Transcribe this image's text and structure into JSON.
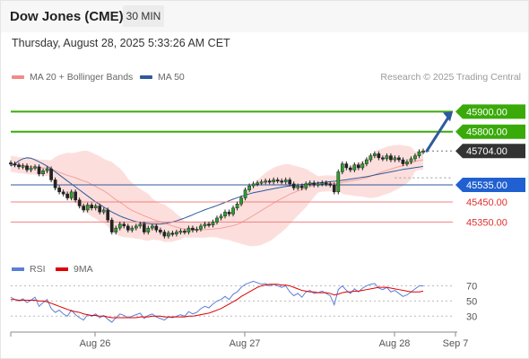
{
  "header": {
    "title": "Dow Jones (CME)",
    "timeframe": "30 MIN"
  },
  "datetime": "Thursday, August 28, 2025 5:33:26 AM CET",
  "credit": "Research © 2025 Trading Central",
  "legend": {
    "bollinger": "MA 20 + Bollinger Bands",
    "ma50": "MA 50",
    "rsi": "RSI",
    "rsi_ma": "9MA"
  },
  "colors": {
    "bollinger": "#f08080",
    "ma50": "#2e5a9c",
    "target": "#3aaa0a",
    "support": "#f08080",
    "pivot": "#2e5a9c",
    "rsi": "#5b7fd6",
    "rsi_ma": "#e00000",
    "last": "#333333"
  },
  "chart_data": [
    {
      "type": "candlestick",
      "series": "Dow Jones (CME)",
      "x_ticks": [
        "Aug 26",
        "Aug 27",
        "Aug 28",
        "Sep 7"
      ],
      "ylim": [
        45240,
        46000
      ],
      "last_price": 45704,
      "levels": [
        {
          "value": 45900,
          "label": "45900.00",
          "kind": "target"
        },
        {
          "value": 45800,
          "label": "45800.00",
          "kind": "target"
        },
        {
          "value": 45704,
          "label": "45704.00",
          "kind": "last"
        },
        {
          "value": 45535,
          "label": "45535.00",
          "kind": "pivot"
        },
        {
          "value": 45450,
          "label": "45450.00",
          "kind": "support"
        },
        {
          "value": 45350,
          "label": "45350.00",
          "kind": "support"
        }
      ],
      "arrow": {
        "from": 45704,
        "to": 45900,
        "direction": "up"
      },
      "closes": [
        45640,
        45635,
        45625,
        45630,
        45610,
        45620,
        45625,
        45590,
        45605,
        45615,
        45560,
        45520,
        45500,
        45490,
        45470,
        45500,
        45460,
        45430,
        45410,
        45435,
        45420,
        45430,
        45400,
        45410,
        45360,
        45300,
        45320,
        45340,
        45330,
        45310,
        45320,
        45330,
        45340,
        45300,
        45320,
        45330,
        45310,
        45300,
        45280,
        45295,
        45290,
        45300,
        45305,
        45300,
        45320,
        45310,
        45315,
        45330,
        45340,
        45335,
        45350,
        45370,
        45380,
        45400,
        45390,
        45420,
        45440,
        45470,
        45510,
        45530,
        45540,
        45545,
        45550,
        45555,
        45550,
        45560,
        45555,
        45550,
        45560,
        45540,
        45520,
        45530,
        45520,
        45540,
        45545,
        45535,
        45540,
        45545,
        45540,
        45535,
        45500,
        45600,
        45640,
        45620,
        45610,
        45635,
        45620,
        45640,
        45660,
        45680,
        45690,
        45670,
        45665,
        45680,
        45660,
        45670,
        45660,
        45640,
        45650,
        45665,
        45680,
        45700,
        45704
      ],
      "ma50": [
        45630,
        45640,
        45655,
        45665,
        45670,
        45668,
        45660,
        45650,
        45640,
        45628,
        45615,
        45600,
        45585,
        45570,
        45555,
        45540,
        45525,
        45510,
        45495,
        45480,
        45465,
        45450,
        45438,
        45425,
        45412,
        45400,
        45390,
        45380,
        45372,
        45365,
        45358,
        45352,
        45348,
        45345,
        45342,
        45340,
        45340,
        45340,
        45342,
        45346,
        45350,
        45356,
        45363,
        45370,
        45378,
        45386,
        45395,
        45403,
        45411,
        45418,
        45425,
        45432,
        45440,
        45448,
        45456,
        45464,
        45471,
        45478,
        45484,
        45490,
        45496,
        45500,
        45504,
        45508,
        45512,
        45516,
        45520,
        45524,
        45527,
        45530,
        45533,
        45535,
        45537,
        45539,
        45541,
        45543,
        45545,
        45547,
        45549,
        45551,
        45553,
        45555,
        45558,
        45561,
        45564,
        45567,
        45570,
        45573,
        45576,
        45580,
        45584,
        45588,
        45592,
        45596,
        45600,
        45604,
        45608,
        45612,
        45615,
        45618,
        45621,
        45624,
        45627
      ]
    },
    {
      "type": "line",
      "title": "RSI",
      "y_ticks": [
        70,
        50,
        30
      ],
      "ylim": [
        15,
        80
      ],
      "series": [
        {
          "name": "RSI",
          "values": [
            55,
            52,
            50,
            53,
            48,
            51,
            55,
            43,
            48,
            52,
            40,
            35,
            38,
            33,
            30,
            38,
            32,
            28,
            25,
            32,
            30,
            33,
            28,
            31,
            26,
            22,
            28,
            33,
            31,
            28,
            30,
            32,
            34,
            27,
            31,
            33,
            29,
            27,
            25,
            29,
            28,
            30,
            32,
            30,
            36,
            33,
            35,
            40,
            43,
            41,
            46,
            50,
            52,
            56,
            52,
            59,
            62,
            68,
            72,
            74,
            76,
            74,
            72,
            73,
            70,
            72,
            70,
            68,
            70,
            62,
            57,
            60,
            55,
            62,
            64,
            60,
            61,
            63,
            60,
            57,
            45,
            65,
            70,
            64,
            60,
            66,
            62,
            67,
            70,
            72,
            73,
            67,
            65,
            68,
            62,
            64,
            60,
            56,
            58,
            62,
            66,
            70,
            70
          ]
        },
        {
          "name": "9MA",
          "values": [
            52,
            52,
            51,
            51,
            51,
            51,
            51,
            50,
            50,
            49,
            47,
            45,
            43,
            41,
            39,
            37,
            36,
            35,
            33,
            32,
            31,
            31,
            30,
            30,
            29,
            28,
            28,
            28,
            28,
            28,
            28,
            28,
            29,
            29,
            29,
            30,
            30,
            30,
            29,
            29,
            29,
            29,
            29,
            29,
            30,
            30,
            31,
            32,
            33,
            34,
            36,
            38,
            40,
            43,
            46,
            49,
            52,
            56,
            59,
            62,
            65,
            68,
            70,
            71,
            72,
            72,
            72,
            71,
            71,
            70,
            68,
            66,
            64,
            63,
            62,
            62,
            61,
            61,
            61,
            60,
            58,
            59,
            61,
            62,
            62,
            63,
            63,
            64,
            65,
            66,
            67,
            68,
            68,
            68,
            67,
            66,
            65,
            64,
            63,
            62,
            62,
            62,
            63
          ]
        }
      ]
    }
  ]
}
